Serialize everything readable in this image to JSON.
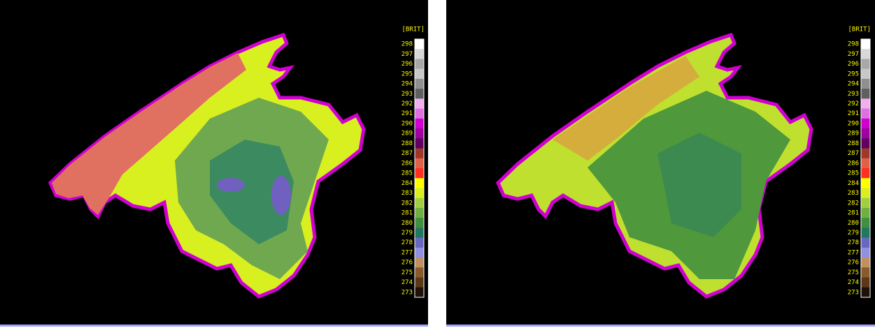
{
  "panels": [
    {
      "colorbar": {
        "title": "[BRIT]",
        "labels": [
          298,
          297,
          296,
          295,
          294,
          293,
          292,
          291,
          290,
          289,
          288,
          287,
          286,
          285,
          284,
          283,
          282,
          281,
          280,
          279,
          278,
          277,
          276,
          275,
          274,
          273
        ],
        "colors": [
          "#ffffff",
          "#d8d8d8",
          "#a8a8a8",
          "#c8c8c8",
          "#909090",
          "#606060",
          "#f0b0f0",
          "#e070e0",
          "#d000d0",
          "#a000a0",
          "#600060",
          "#a03828",
          "#e06048",
          "#ff3020",
          "#ffff00",
          "#d8f020",
          "#a0d040",
          "#70b040",
          "#409040",
          "#207860",
          "#6868c0",
          "#9090e0",
          "#c09060",
          "#8a5a2a",
          "#5a3818",
          "#201008"
        ]
      }
    },
    {
      "colorbar": {
        "title": "[BRIT]",
        "labels": [
          298,
          297,
          296,
          295,
          294,
          293,
          292,
          291,
          290,
          289,
          288,
          287,
          286,
          285,
          284,
          283,
          282,
          281,
          280,
          279,
          278,
          277,
          276,
          275,
          274,
          273
        ],
        "colors": [
          "#ffffff",
          "#d8d8d8",
          "#a8a8a8",
          "#c8c8c8",
          "#909090",
          "#606060",
          "#f0b0f0",
          "#e070e0",
          "#d000d0",
          "#a000a0",
          "#600060",
          "#a03828",
          "#e06048",
          "#ff3020",
          "#ffff00",
          "#d8f020",
          "#a0d040",
          "#70b040",
          "#409040",
          "#207860",
          "#6868c0",
          "#9090e0",
          "#c09060",
          "#8a5a2a",
          "#5a3818",
          "#201008"
        ]
      }
    }
  ]
}
